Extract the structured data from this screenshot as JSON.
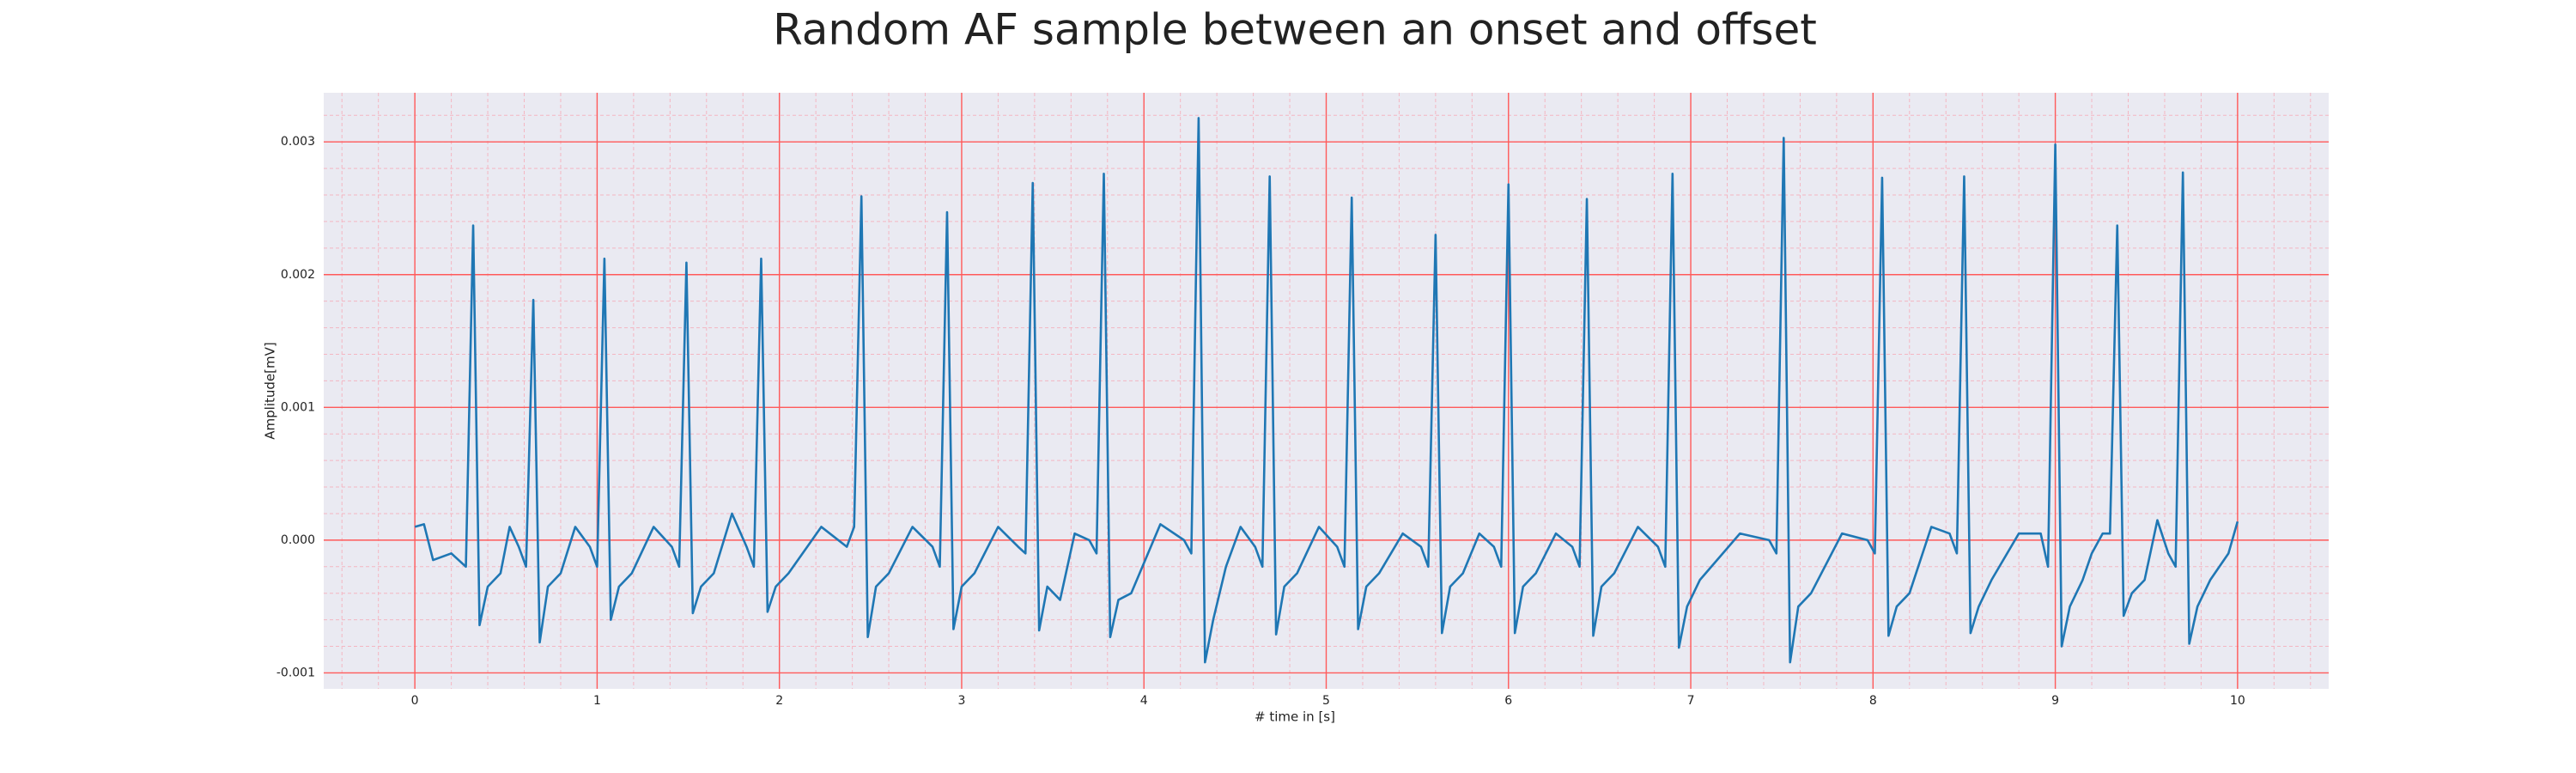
{
  "chart_data": {
    "type": "line",
    "title": "Random AF sample between an onset and offset",
    "xlabel": "# time in [s]",
    "ylabel": "Amplitude[mV]",
    "color": "#1f77b4",
    "grid": true,
    "minor_grid": true,
    "xlim": [
      -0.5,
      10.5
    ],
    "ylim": [
      -0.00112,
      0.00337
    ],
    "xticks": [
      0,
      1,
      2,
      3,
      4,
      5,
      6,
      7,
      8,
      9,
      10
    ],
    "yticks": [
      -0.001,
      {
        "value": 0,
        "label": "0.000"
      },
      0.001,
      0.002,
      0.003
    ],
    "x": [
      0,
      0.05,
      0.1,
      0.2,
      0.28,
      0.32,
      0.355,
      0.4,
      0.47,
      0.52,
      0.57,
      0.61,
      0.65,
      0.685,
      0.73,
      0.8,
      0.88,
      0.96,
      1.0,
      1.04,
      1.075,
      1.12,
      1.19,
      1.31,
      1.41,
      1.45,
      1.49,
      1.525,
      1.57,
      1.64,
      1.74,
      1.82,
      1.86,
      1.9,
      1.935,
      1.98,
      2.05,
      2.23,
      2.37,
      2.41,
      2.45,
      2.485,
      2.53,
      2.6,
      2.73,
      2.84,
      2.88,
      2.92,
      2.955,
      3.0,
      3.07,
      3.2,
      3.31,
      3.35,
      3.39,
      3.425,
      3.47,
      3.54,
      3.62,
      3.7,
      3.74,
      3.78,
      3.815,
      3.86,
      3.93,
      4.09,
      4.22,
      4.26,
      4.3,
      4.335,
      4.38,
      4.45,
      4.53,
      4.61,
      4.65,
      4.69,
      4.725,
      4.77,
      4.84,
      4.96,
      5.06,
      5.1,
      5.14,
      5.175,
      5.22,
      5.29,
      5.42,
      5.52,
      5.56,
      5.6,
      5.635,
      5.68,
      5.75,
      5.84,
      5.92,
      5.96,
      6.0,
      6.035,
      6.08,
      6.15,
      6.26,
      6.35,
      6.39,
      6.43,
      6.465,
      6.51,
      6.58,
      6.71,
      6.82,
      6.86,
      6.9,
      6.935,
      6.98,
      7.05,
      7.27,
      7.43,
      7.47,
      7.51,
      7.545,
      7.59,
      7.66,
      7.83,
      7.97,
      8.01,
      8.05,
      8.085,
      8.13,
      8.2,
      8.32,
      8.42,
      8.46,
      8.5,
      8.535,
      8.58,
      8.65,
      8.8,
      8.92,
      8.96,
      9.0,
      9.035,
      9.08,
      9.15,
      9.2,
      9.26,
      9.3,
      9.34,
      9.375,
      9.42,
      9.49,
      9.56,
      9.62,
      9.66,
      9.7,
      9.735,
      9.78,
      9.85,
      9.95,
      10.0
    ],
    "values": [
      0.0001,
      0.00012,
      -0.00015,
      -0.0001,
      -0.0002,
      0.00237,
      -0.00064,
      -0.00035,
      -0.00025,
      0.0001,
      -5e-05,
      -0.0002,
      0.00181,
      -0.00077,
      -0.00035,
      -0.00025,
      0.0001,
      -5e-05,
      -0.0002,
      0.00212,
      -0.0006,
      -0.00035,
      -0.00025,
      0.0001,
      -5e-05,
      -0.0002,
      0.00209,
      -0.00055,
      -0.00035,
      -0.00025,
      0.0002,
      -5e-05,
      -0.0002,
      0.00212,
      -0.00054,
      -0.00035,
      -0.00025,
      0.0001,
      -5e-05,
      0.0001,
      0.00259,
      -0.00073,
      -0.00035,
      -0.00025,
      0.0001,
      -5e-05,
      -0.0002,
      0.00247,
      -0.00067,
      -0.00035,
      -0.00025,
      0.0001,
      -5e-05,
      -0.0001,
      0.00269,
      -0.00068,
      -0.00035,
      -0.00045,
      5e-05,
      0,
      -0.0001,
      0.00276,
      -0.00073,
      -0.00045,
      -0.0004,
      0.00012,
      0,
      -0.0001,
      0.00318,
      -0.00092,
      -0.0006,
      -0.0002,
      0.0001,
      -5e-05,
      -0.0002,
      0.00274,
      -0.00071,
      -0.00035,
      -0.00025,
      0.0001,
      -5e-05,
      -0.0002,
      0.00258,
      -0.00067,
      -0.00035,
      -0.00025,
      5e-05,
      -5e-05,
      -0.0002,
      0.0023,
      -0.0007,
      -0.00035,
      -0.00025,
      5e-05,
      -5e-05,
      -0.0002,
      0.00268,
      -0.0007,
      -0.00035,
      -0.00025,
      5e-05,
      -5e-05,
      -0.0002,
      0.00257,
      -0.00072,
      -0.00035,
      -0.00025,
      0.0001,
      -5e-05,
      -0.0002,
      0.00276,
      -0.00081,
      -0.0005,
      -0.0003,
      5e-05,
      0,
      -0.0001,
      0.00303,
      -0.00092,
      -0.0005,
      -0.0004,
      5e-05,
      0,
      -0.0001,
      0.00273,
      -0.00072,
      -0.0005,
      -0.0004,
      0.0001,
      5e-05,
      -0.0001,
      0.00274,
      -0.0007,
      -0.0005,
      -0.0003,
      5e-05,
      5e-05,
      -0.0002,
      0.00298,
      -0.0008,
      -0.0005,
      -0.0003,
      -0.0001,
      5e-05,
      5e-05,
      0.00237,
      -0.00057,
      -0.0004,
      -0.0003,
      0.00015,
      -0.0001,
      -0.0002,
      0.00277,
      -0.00078,
      -0.0005,
      -0.0003,
      -0.0001,
      0.00014
    ]
  }
}
